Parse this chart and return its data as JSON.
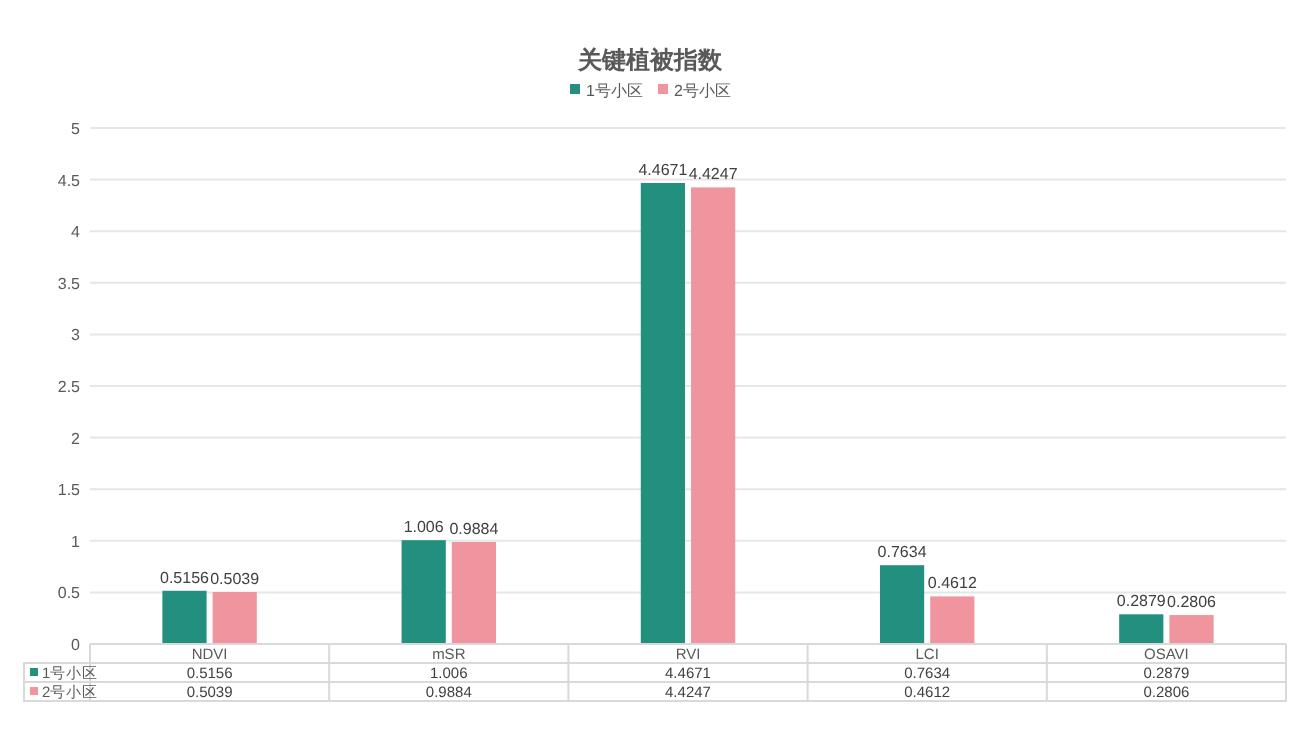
{
  "chart_data": [
    {
      "type": "bar",
      "title": "关键植被指数",
      "categories": [
        "NDVI",
        "mSR",
        "RVI",
        "LCI",
        "OSAVI"
      ],
      "series": [
        {
          "name": "1号小区",
          "color": "#23907f",
          "values": [
            0.5156,
            1.006,
            4.4671,
            0.7634,
            0.2879
          ],
          "value_labels": [
            "0.5156",
            "1.006",
            "4.4671",
            "0.7634",
            "0.2879"
          ]
        },
        {
          "name": "2号小区",
          "color": "#f0959e",
          "values": [
            0.5039,
            0.9884,
            4.4247,
            0.4612,
            0.2806
          ],
          "value_labels": [
            "0.5039",
            "0.9884",
            "4.4247",
            "0.4612",
            "0.2806"
          ]
        }
      ],
      "ylim": [
        0,
        5
      ],
      "yticks": [
        0,
        0.5,
        1,
        1.5,
        2,
        2.5,
        3,
        3.5,
        4,
        4.5,
        5
      ],
      "grid": "y",
      "legend": "top"
    },
    {
      "type": "other",
      "annotations": [
        "1号小区",
        "0.5156",
        "1.006",
        "4.4671",
        "0.7634",
        "0.2879",
        "2号小区",
        "0.5039",
        "0.9884",
        "4.4247",
        "0.4612",
        "0.2806"
      ]
    }
  ]
}
